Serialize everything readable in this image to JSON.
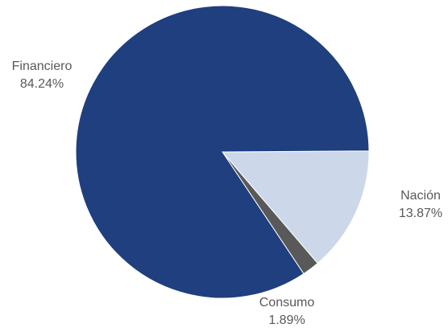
{
  "chart_data": {
    "type": "pie",
    "title": "",
    "slices": [
      {
        "name": "Nación",
        "value": 13.87,
        "label": "13.87%",
        "color": "#ccd8ea"
      },
      {
        "name": "Consumo",
        "value": 1.89,
        "label": "1.89%",
        "color": "#595959"
      },
      {
        "name": "Financiero",
        "value": 84.24,
        "label": "84.24%",
        "color": "#1f3f7e"
      }
    ],
    "start_angle_deg": 0,
    "direction": "clockwise",
    "legend": "none",
    "labels": "outside"
  }
}
